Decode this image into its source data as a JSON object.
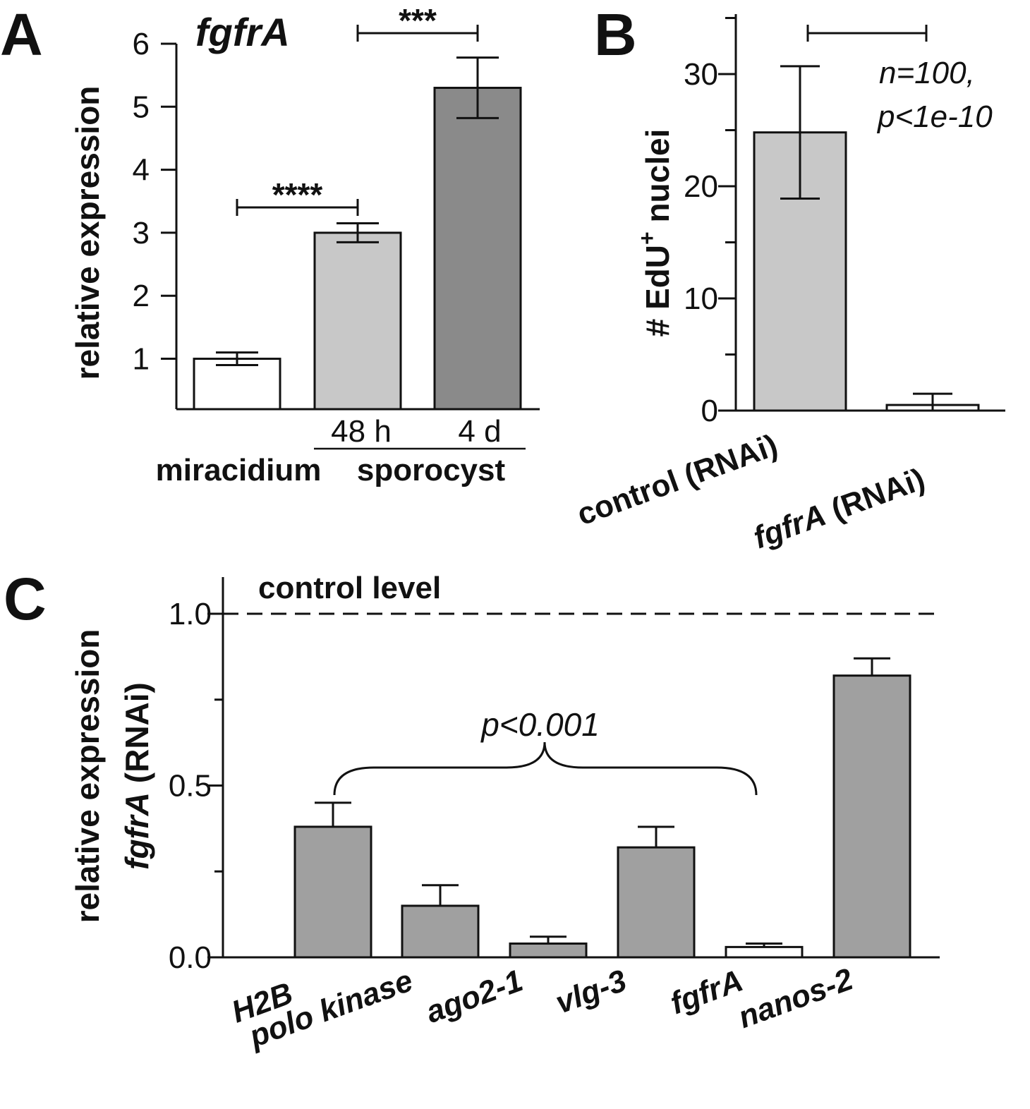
{
  "figure": {
    "colors": {
      "white": "#ffffff",
      "light_gray": "#c8c8c8",
      "mid_gray": "#a0a0a0",
      "dark_gray": "#8a8a8a",
      "ink": "#111111"
    }
  },
  "chart_data": [
    {
      "panel": "A",
      "type": "bar",
      "title": "fgfrA",
      "ylabel": "relative expression",
      "ylim": [
        0,
        6
      ],
      "yticks": [
        1,
        2,
        3,
        4,
        5,
        6
      ],
      "categories": [
        "miracidium",
        "48 h",
        "4 d"
      ],
      "group_label": "sporocyst",
      "values": [
        1.0,
        3.0,
        5.3
      ],
      "errors": [
        0.1,
        0.15,
        0.48
      ],
      "fills": [
        "#ffffff",
        "#c8c8c8",
        "#8a8a8a"
      ],
      "significance": [
        {
          "from": 0,
          "to": 1,
          "label": "****"
        },
        {
          "from": 1,
          "to": 2,
          "label": "***"
        }
      ]
    },
    {
      "panel": "B",
      "type": "bar",
      "ylabel_prefix": "# EdU",
      "ylabel_sup": "+",
      "ylabel_suffix": " nuclei",
      "ylim": [
        0,
        35
      ],
      "yticks": [
        0,
        10,
        20,
        30
      ],
      "categories": [
        "control (RNAi)",
        "fgfrA (RNAi)"
      ],
      "values": [
        24.8,
        0.5
      ],
      "errors": [
        5.9,
        1.0
      ],
      "fills": [
        "#c8c8c8",
        "#ffffff"
      ],
      "annotation_line1": "n=100,",
      "annotation_line2": "p<1e-10"
    },
    {
      "panel": "C",
      "type": "bar",
      "ylabel_line1": "relative expression",
      "ylabel_line2_ital": "fgfrA",
      "ylabel_line2_rest": " (RNAi)",
      "ylim": [
        0,
        1.1
      ],
      "yticks": [
        0.0,
        0.5,
        1.0
      ],
      "ytick_labels": [
        "0.0",
        "0.5",
        "1.0"
      ],
      "categories": [
        "H2B",
        "polo kinase",
        "ago2-1",
        "vlg-3",
        "fgfrA",
        "nanos-2"
      ],
      "values": [
        0.38,
        0.15,
        0.04,
        0.32,
        0.03,
        0.82
      ],
      "errors": [
        0.07,
        0.06,
        0.02,
        0.06,
        0.01,
        0.05
      ],
      "fills": [
        "#a0a0a0",
        "#a0a0a0",
        "#a0a0a0",
        "#a0a0a0",
        "#ffffff",
        "#a0a0a0"
      ],
      "reference_line": {
        "value": 1.0,
        "label": "control level"
      },
      "bracket_label": "p<0.001"
    }
  ]
}
